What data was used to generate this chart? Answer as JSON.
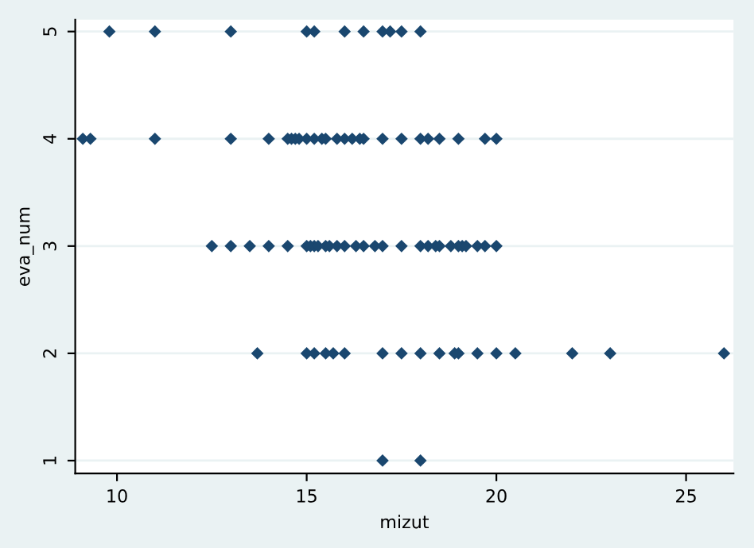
{
  "chart_data": {
    "type": "scatter",
    "xlabel": "mizut",
    "ylabel": "eva_num",
    "x": [
      9.8,
      11,
      13,
      15,
      15.2,
      16,
      16.5,
      17,
      17.2,
      17.5,
      18,
      9.1,
      9.3,
      11,
      13,
      14,
      14.5,
      14.6,
      14.7,
      14.8,
      15,
      15.2,
      15.4,
      15.5,
      15.8,
      16,
      16.2,
      16.4,
      16.5,
      17,
      17.5,
      18,
      18.2,
      18.5,
      19,
      19.7,
      20,
      12.5,
      13,
      13.5,
      14,
      14.5,
      15,
      15.1,
      15.2,
      15.3,
      15.5,
      15.6,
      15.8,
      16,
      16.3,
      16.5,
      16.8,
      17,
      17.5,
      18,
      18.2,
      18.4,
      18.5,
      18.8,
      19,
      19.1,
      19.2,
      19.5,
      19.7,
      20,
      13.7,
      15,
      15.2,
      15.5,
      15.7,
      16,
      17,
      17.5,
      18,
      18.5,
      18.9,
      19,
      19.5,
      20,
      20.5,
      22,
      23,
      26,
      17,
      18
    ],
    "series": [
      {
        "color": "#1a476f",
        "values": [
          5,
          5,
          5,
          5,
          5,
          5,
          5,
          5,
          5,
          5,
          5,
          4,
          4,
          4,
          4,
          4,
          4,
          4,
          4,
          4,
          4,
          4,
          4,
          4,
          4,
          4,
          4,
          4,
          4,
          4,
          4,
          4,
          4,
          4,
          4,
          4,
          4,
          3,
          3,
          3,
          3,
          3,
          3,
          3,
          3,
          3,
          3,
          3,
          3,
          3,
          3,
          3,
          3,
          3,
          3,
          3,
          3,
          3,
          3,
          3,
          3,
          3,
          3,
          3,
          3,
          3,
          2,
          2,
          2,
          2,
          2,
          2,
          2,
          2,
          2,
          2,
          2,
          2,
          2,
          2,
          2,
          2,
          2,
          2,
          1,
          1
        ]
      }
    ],
    "xlim": [
      8.9,
      26.25
    ],
    "ylim": [
      0.88,
      5.11
    ],
    "xticks": [
      10,
      15,
      20,
      25
    ],
    "yticks": [
      1,
      2,
      3,
      4,
      5
    ],
    "grid": "y",
    "marker": "diamond",
    "legend": false
  }
}
